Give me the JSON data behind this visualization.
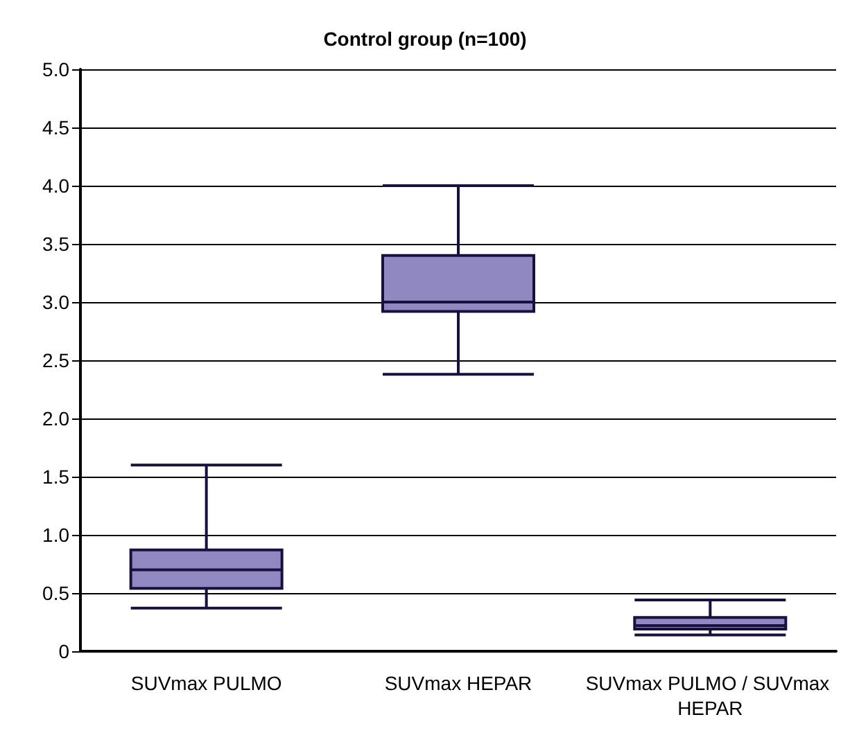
{
  "chart_data": {
    "type": "box",
    "title": "Control group (n=100)",
    "categories": [
      "SUVmax PULMO",
      "SUVmax HEPAR",
      "SUVmax PULMO / SUVmax HEPAR"
    ],
    "color": "#9088c0",
    "boxes": [
      {
        "low": 0.37,
        "q1": 0.54,
        "median": 0.7,
        "q3": 0.87,
        "high": 1.6
      },
      {
        "low": 2.38,
        "q1": 2.92,
        "median": 3.0,
        "q3": 3.4,
        "high": 4.0
      },
      {
        "low": 0.14,
        "q1": 0.19,
        "median": 0.22,
        "q3": 0.29,
        "high": 0.44
      }
    ],
    "ylim": [
      0,
      5
    ],
    "yticks": [
      0,
      0.5,
      {
        "value": 1,
        "label": "1.0"
      },
      1.5,
      {
        "value": 2,
        "label": "2.0"
      },
      2.5,
      {
        "value": 3,
        "label": "3.0"
      },
      3.5,
      {
        "value": 4,
        "label": "4.0"
      },
      4.5,
      {
        "value": 5,
        "label": "5.0"
      }
    ],
    "grid": "y"
  }
}
